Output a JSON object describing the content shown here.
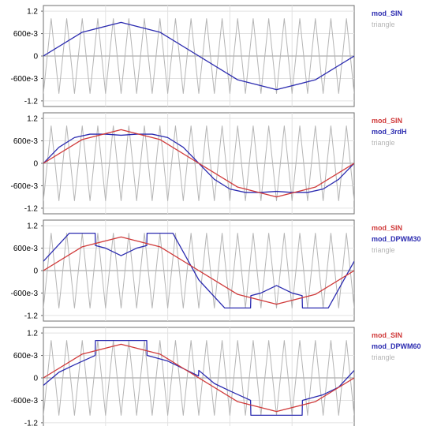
{
  "chart_data": [
    {
      "type": "line",
      "ylim": [
        -1.35,
        1.35
      ],
      "y_ticks": [
        "1.2",
        "600e-3",
        "0",
        "-600e-3",
        "-1.2"
      ],
      "y_tick_values": [
        1.2,
        0.6,
        0,
        -0.6,
        -1.2
      ],
      "x_ticks": [
        "0",
        "4e-3",
        "8e-3",
        "12e-3",
        "16e-3",
        "20e-3"
      ],
      "legend": [
        {
          "name": "mod_SIN",
          "color": "#2b2bb0"
        },
        {
          "name": "triangle",
          "color": "#b5b5b5"
        }
      ],
      "series": [
        {
          "name": "mod_SIN",
          "color": "#2b2bb0",
          "x": [
            0,
            0.0025,
            0.005,
            0.0075,
            0.01,
            0.0125,
            0.015,
            0.0175,
            0.02
          ],
          "y": [
            0,
            0.636,
            0.9,
            0.636,
            0,
            -0.636,
            -0.9,
            -0.636,
            0
          ]
        },
        {
          "name": "triangle",
          "color": "#b5b5b5",
          "x": [
            0,
            0.0005,
            0.001,
            0.0015,
            0.002,
            0.0025,
            0.003,
            0.0035,
            0.004,
            0.0045,
            0.005,
            0.0055,
            0.006,
            0.0065,
            0.007,
            0.0075,
            0.008,
            0.0085,
            0.009,
            0.0095,
            0.01,
            0.0105,
            0.011,
            0.0115,
            0.012,
            0.0125,
            0.013,
            0.0135,
            0.014,
            0.0145,
            0.015,
            0.0155,
            0.016,
            0.0165,
            0.017,
            0.0175,
            0.018,
            0.0185,
            0.019,
            0.0195,
            0.02
          ],
          "y": [
            -1,
            1,
            -1,
            1,
            -1,
            1,
            -1,
            1,
            -1,
            1,
            -1,
            1,
            -1,
            1,
            -1,
            1,
            -1,
            1,
            -1,
            1,
            -1,
            1,
            -1,
            1,
            -1,
            1,
            -1,
            1,
            -1,
            1,
            -1,
            1,
            -1,
            1,
            -1,
            1,
            -1,
            1,
            -1,
            1,
            -1
          ]
        }
      ]
    },
    {
      "type": "line",
      "ylim": [
        -1.35,
        1.35
      ],
      "y_ticks": [
        "1.2",
        "600e-3",
        "0",
        "-600e-3",
        "-1.2"
      ],
      "y_tick_values": [
        1.2,
        0.6,
        0,
        -0.6,
        -1.2
      ],
      "x_ticks": [
        "0",
        "4e-3",
        "8e-3",
        "12e-3",
        "16e-3",
        "20e-3"
      ],
      "legend": [
        {
          "name": "mod_SIN",
          "color": "#d03a3a"
        },
        {
          "name": "mod_3rdH",
          "color": "#2b2bb0"
        },
        {
          "name": "triangle",
          "color": "#b5b5b5"
        }
      ],
      "series": [
        {
          "name": "mod_SIN",
          "color": "#d03a3a",
          "x": [
            0,
            0.0025,
            0.005,
            0.0075,
            0.01,
            0.0125,
            0.015,
            0.0175,
            0.02
          ],
          "y": [
            0,
            0.636,
            0.9,
            0.636,
            0,
            -0.636,
            -0.9,
            -0.636,
            0
          ]
        },
        {
          "name": "mod_3rdH",
          "color": "#2b2bb0",
          "x": [
            0,
            0.001,
            0.002,
            0.003,
            0.004,
            0.005,
            0.006,
            0.007,
            0.008,
            0.009,
            0.01,
            0.011,
            0.012,
            0.013,
            0.014,
            0.015,
            0.016,
            0.017,
            0.018,
            0.019,
            0.02
          ],
          "y": [
            0,
            0.428,
            0.688,
            0.779,
            0.779,
            0.75,
            0.779,
            0.779,
            0.688,
            0.428,
            0,
            -0.428,
            -0.688,
            -0.779,
            -0.779,
            -0.75,
            -0.779,
            -0.779,
            -0.688,
            -0.428,
            0
          ]
        },
        {
          "name": "triangle",
          "color": "#b5b5b5",
          "x": [
            0,
            0.0005,
            0.001,
            0.0015,
            0.002,
            0.0025,
            0.003,
            0.0035,
            0.004,
            0.0045,
            0.005,
            0.0055,
            0.006,
            0.0065,
            0.007,
            0.0075,
            0.008,
            0.0085,
            0.009,
            0.0095,
            0.01,
            0.0105,
            0.011,
            0.0115,
            0.012,
            0.0125,
            0.013,
            0.0135,
            0.014,
            0.0145,
            0.015,
            0.0155,
            0.016,
            0.0165,
            0.017,
            0.0175,
            0.018,
            0.0185,
            0.019,
            0.0195,
            0.02
          ],
          "y": [
            -1,
            1,
            -1,
            1,
            -1,
            1,
            -1,
            1,
            -1,
            1,
            -1,
            1,
            -1,
            1,
            -1,
            1,
            -1,
            1,
            -1,
            1,
            -1,
            1,
            -1,
            1,
            -1,
            1,
            -1,
            1,
            -1,
            1,
            -1,
            1,
            -1,
            1,
            -1,
            1,
            -1,
            1,
            -1,
            1,
            -1
          ]
        }
      ]
    },
    {
      "type": "line",
      "ylim": [
        -1.35,
        1.35
      ],
      "y_ticks": [
        "1.2",
        "600e-3",
        "0",
        "-600e-3",
        "-1.2"
      ],
      "y_tick_values": [
        1.2,
        0.6,
        0,
        -0.6,
        -1.2
      ],
      "x_ticks": [
        "0",
        "4e-3",
        "8e-3",
        "12e-3",
        "16e-3",
        "20e-3"
      ],
      "legend": [
        {
          "name": "mod_SIN",
          "color": "#d03a3a"
        },
        {
          "name": "mod_DPWM30",
          "color": "#2b2bb0"
        },
        {
          "name": "triangle",
          "color": "#b5b5b5"
        }
      ],
      "series": [
        {
          "name": "mod_SIN",
          "color": "#d03a3a",
          "x": [
            0,
            0.0025,
            0.005,
            0.0075,
            0.01,
            0.0125,
            0.015,
            0.0175,
            0.02
          ],
          "y": [
            0,
            0.636,
            0.9,
            0.636,
            0,
            -0.636,
            -0.9,
            -0.636,
            0
          ]
        },
        {
          "name": "mod_DPWM30",
          "color": "#2b2bb0",
          "x": [
            0,
            0.00167,
            0.00333,
            0.00335,
            0.004,
            0.005,
            0.006,
            0.00665,
            0.00667,
            0.00833,
            0.01,
            0.01167,
            0.01333,
            0.01335,
            0.014,
            0.015,
            0.016,
            0.01665,
            0.01667,
            0.01833,
            0.02
          ],
          "y": [
            0.25,
            1,
            1,
            0.67,
            0.6,
            0.4,
            0.6,
            0.67,
            1,
            1,
            -0.25,
            -1,
            -1,
            -0.67,
            -0.6,
            -0.4,
            -0.6,
            -0.67,
            -1,
            -1,
            0.25
          ]
        },
        {
          "name": "triangle",
          "color": "#b5b5b5",
          "x": [
            0,
            0.0005,
            0.001,
            0.0015,
            0.002,
            0.0025,
            0.003,
            0.0035,
            0.004,
            0.0045,
            0.005,
            0.0055,
            0.006,
            0.0065,
            0.007,
            0.0075,
            0.008,
            0.0085,
            0.009,
            0.0095,
            0.01,
            0.0105,
            0.011,
            0.0115,
            0.012,
            0.0125,
            0.013,
            0.0135,
            0.014,
            0.0145,
            0.015,
            0.0155,
            0.016,
            0.0165,
            0.017,
            0.0175,
            0.018,
            0.0185,
            0.019,
            0.0195,
            0.02
          ],
          "y": [
            -1,
            1,
            -1,
            1,
            -1,
            1,
            -1,
            1,
            -1,
            1,
            -1,
            1,
            -1,
            1,
            -1,
            1,
            -1,
            1,
            -1,
            1,
            -1,
            1,
            -1,
            1,
            -1,
            1,
            -1,
            1,
            -1,
            1,
            -1,
            1,
            -1,
            1,
            -1,
            1,
            -1,
            1,
            -1,
            1,
            -1
          ]
        }
      ]
    },
    {
      "type": "line",
      "ylim": [
        -1.35,
        1.35
      ],
      "y_ticks": [
        "1.2",
        "600e-3",
        "0",
        "-600e-3",
        "-1.2"
      ],
      "y_tick_values": [
        1.2,
        0.6,
        0,
        -0.6,
        -1.2
      ],
      "x_ticks": [
        "0",
        "4e-3",
        "8e-3",
        "12e-3",
        "16e-3",
        "20e-3"
      ],
      "legend": [
        {
          "name": "mod_SIN",
          "color": "#d03a3a"
        },
        {
          "name": "mod_DPWM60",
          "color": "#2b2bb0"
        },
        {
          "name": "triangle",
          "color": "#b5b5b5"
        }
      ],
      "series": [
        {
          "name": "mod_SIN",
          "color": "#d03a3a",
          "x": [
            0,
            0.0025,
            0.005,
            0.0075,
            0.01,
            0.0125,
            0.015,
            0.0175,
            0.02
          ],
          "y": [
            0,
            0.636,
            0.9,
            0.636,
            0,
            -0.636,
            -0.9,
            -0.636,
            0
          ]
        },
        {
          "name": "mod_DPWM60",
          "color": "#2b2bb0",
          "x": [
            0,
            0.001,
            0.002,
            0.00333,
            0.00335,
            0.005,
            0.00665,
            0.00667,
            0.008,
            0.009,
            0.00998,
            0.01,
            0.011,
            0.012,
            0.01333,
            0.01335,
            0.015,
            0.01665,
            0.01667,
            0.018,
            0.019,
            0.02
          ],
          "y": [
            -0.2,
            0.15,
            0.35,
            0.6,
            1,
            1,
            1,
            0.6,
            0.45,
            0.25,
            0.05,
            0.2,
            -0.15,
            -0.35,
            -0.6,
            -1,
            -1,
            -1,
            -0.6,
            -0.45,
            -0.25,
            0.2
          ]
        },
        {
          "name": "triangle",
          "color": "#b5b5b5",
          "x": [
            0,
            0.0005,
            0.001,
            0.0015,
            0.002,
            0.0025,
            0.003,
            0.0035,
            0.004,
            0.0045,
            0.005,
            0.0055,
            0.006,
            0.0065,
            0.007,
            0.0075,
            0.008,
            0.0085,
            0.009,
            0.0095,
            0.01,
            0.0105,
            0.011,
            0.0115,
            0.012,
            0.0125,
            0.013,
            0.0135,
            0.014,
            0.0145,
            0.015,
            0.0155,
            0.016,
            0.0165,
            0.017,
            0.0175,
            0.018,
            0.0185,
            0.019,
            0.0195,
            0.02
          ],
          "y": [
            -1,
            1,
            -1,
            1,
            -1,
            1,
            -1,
            1,
            -1,
            1,
            -1,
            1,
            -1,
            1,
            -1,
            1,
            -1,
            1,
            -1,
            1,
            -1,
            1,
            -1,
            1,
            -1,
            1,
            -1,
            1,
            -1,
            1,
            -1,
            1,
            -1,
            1,
            -1,
            1,
            -1,
            1,
            -1,
            1,
            -1
          ]
        }
      ]
    }
  ]
}
